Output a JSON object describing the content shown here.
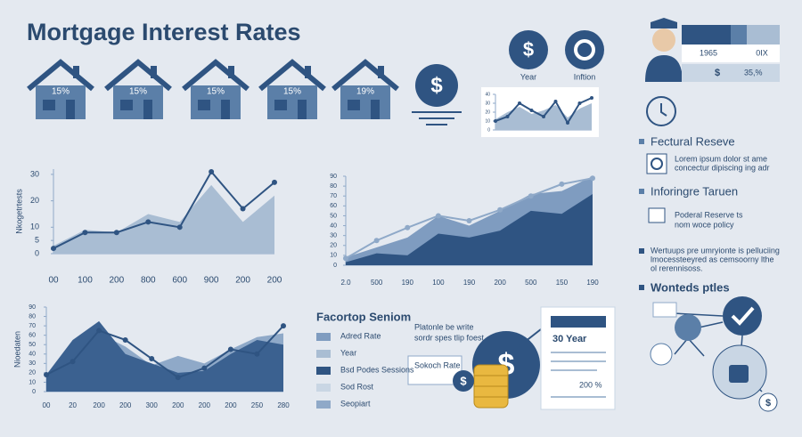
{
  "title": "Mortgage Interest Rates",
  "dollar_sign": "$",
  "houses": [
    "15%",
    "15%",
    "15%",
    "15%",
    "19%"
  ],
  "icons": {
    "year": "Year",
    "inflation": "Inftion"
  },
  "card": {
    "row1_left": "1965",
    "row1_right": "0IX",
    "row2_right": "35,%"
  },
  "sections": [
    {
      "title": "Fectural Reseve",
      "lines": [
        "Lorem ipsum dolor st ame",
        "concectur dipiscing ing adr"
      ]
    },
    {
      "title": "Inforingre Taruen",
      "lines": [
        "Poderal Reserve ts",
        "nom woce policy"
      ]
    },
    {
      "lines": [
        "Wertuups pre umryionte is pelluciing",
        "lmocessteeyred as cemsoorny lthe",
        "ol rerennisoss."
      ]
    },
    {
      "title": "Wonteds ptles"
    }
  ],
  "legend_panel": {
    "title": "Facortop Seniom",
    "items": [
      {
        "label": "Adred Rate",
        "color": "#7f9cc0"
      },
      {
        "label": "Year",
        "color": "#a9bdd3"
      },
      {
        "label": "Bsd Podes Sessions",
        "color": "#2f5482"
      },
      {
        "label": "Sod Rost",
        "color": "#c9d6e4"
      },
      {
        "label": "Seopiart",
        "color": "#8fa9c8"
      }
    ]
  },
  "callout": {
    "lines": [
      "Platonle be write",
      "sordr spes tlip foest"
    ],
    "box": "Sokoch Rate"
  },
  "document": {
    "heading": "30 Year",
    "value": "200 %"
  },
  "chart_data": [
    {
      "type": "area",
      "y_label": "Nkogetrtests",
      "categories": [
        "00",
        "100",
        "200",
        "800",
        "600",
        "900",
        "200",
        "200"
      ],
      "ylim": [
        0,
        32
      ],
      "yticks": [
        0,
        5,
        10,
        20,
        30
      ],
      "series": [
        {
          "color": "#a9bdd3",
          "style": "area",
          "values": [
            3,
            9,
            8,
            15,
            12,
            26,
            12,
            22
          ]
        },
        {
          "color": "#2f5482",
          "style": "line",
          "markers": true,
          "values": [
            2,
            8,
            8,
            12,
            10,
            31,
            17,
            27
          ]
        }
      ]
    },
    {
      "type": "area",
      "categories": [
        "2.0",
        "500",
        "190",
        "100",
        "190",
        "200",
        "500",
        "150",
        "190"
      ],
      "ylim": [
        0,
        90
      ],
      "yticks": [
        0,
        10,
        20,
        30,
        40,
        50,
        60,
        70,
        80,
        90
      ],
      "series": [
        {
          "color": "#7f9cc0",
          "style": "area",
          "values": [
            8,
            18,
            28,
            50,
            40,
            55,
            72,
            75,
            90
          ]
        },
        {
          "color": "#2f5482",
          "style": "area",
          "values": [
            3,
            12,
            10,
            32,
            28,
            35,
            55,
            52,
            72
          ]
        },
        {
          "color": "#8fa9c8",
          "style": "line",
          "markers": true,
          "values": [
            7,
            25,
            38,
            50,
            45,
            56,
            70,
            82,
            88
          ]
        }
      ]
    },
    {
      "type": "area",
      "y_label": "Nioedaten",
      "categories": [
        "00",
        "20",
        "200",
        "200",
        "300",
        "200",
        "200",
        "200",
        "250",
        "280"
      ],
      "ylim": [
        0,
        90
      ],
      "yticks": [
        0,
        10,
        20,
        30,
        40,
        50,
        60,
        70,
        80,
        90
      ],
      "series": [
        {
          "color": "#8fa9c8",
          "style": "area",
          "values": [
            10,
            40,
            62,
            48,
            28,
            38,
            30,
            45,
            58,
            62
          ]
        },
        {
          "color": "#3b6190",
          "style": "area",
          "values": [
            18,
            55,
            75,
            40,
            30,
            20,
            22,
            40,
            55,
            50
          ]
        },
        {
          "color": "#2f5482",
          "style": "line",
          "markers": true,
          "values": [
            18,
            32,
            65,
            55,
            35,
            15,
            25,
            45,
            40,
            70
          ]
        }
      ]
    },
    {
      "type": "area",
      "categories": [
        null,
        null,
        null,
        null,
        null,
        null,
        null,
        null,
        null
      ],
      "ylim": [
        0,
        40
      ],
      "yticks": [
        0,
        10,
        20,
        30,
        40
      ],
      "series": [
        {
          "color": "#a9bdd3",
          "style": "area",
          "values": [
            12,
            20,
            26,
            18,
            22,
            28,
            14,
            24,
            30
          ]
        },
        {
          "color": "#2f5482",
          "style": "line",
          "markers": true,
          "values": [
            10,
            15,
            30,
            22,
            15,
            32,
            8,
            30,
            36
          ]
        }
      ]
    }
  ]
}
